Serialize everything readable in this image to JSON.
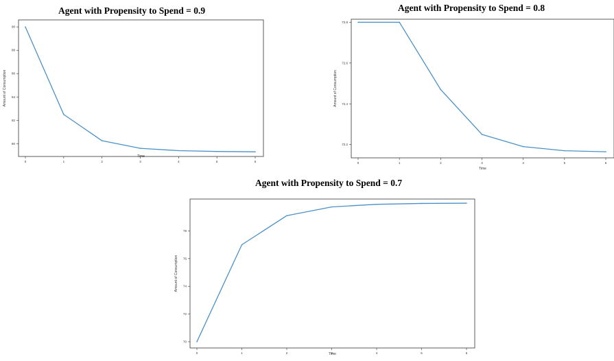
{
  "chart_data": [
    {
      "type": "line",
      "title": "Agent with Propensity to Spend = 0.9",
      "xlabel": "Time",
      "ylabel": "Amount of Consumption",
      "x": [
        0,
        1,
        2,
        3,
        4,
        5,
        6
      ],
      "series": [
        {
          "values": [
            90.0,
            82.5,
            80.25,
            79.6,
            79.4,
            79.33,
            79.3
          ]
        }
      ],
      "xticks": [
        "0",
        "1",
        "2",
        "3",
        "4",
        "5",
        "6"
      ],
      "yticks": [
        "80",
        "82",
        "84",
        "86",
        "88",
        "90"
      ],
      "ylim": [
        78.9,
        90.6
      ],
      "line_color": "#4a90c8",
      "grid": false
    },
    {
      "type": "line",
      "title": "Agent with Propensity to Spend = 0.8",
      "xlabel": "Time",
      "ylabel": "Amount of Consumption",
      "x": [
        0,
        1,
        2,
        3,
        4,
        5,
        6
      ],
      "series": [
        {
          "values": [
            72.8,
            72.8,
            72.47,
            72.25,
            72.19,
            72.17,
            72.165
          ]
        }
      ],
      "xticks": [
        "0",
        "1",
        "2",
        "3",
        "4",
        "5",
        "6"
      ],
      "yticks": [
        "72.2",
        "72.4",
        "72.6",
        "72.8"
      ],
      "ylim": [
        72.135,
        72.815
      ],
      "line_color": "#4a90c8",
      "grid": false
    },
    {
      "type": "line",
      "title": "Agent with Propensity to Spend = 0.7",
      "xlabel": "Time",
      "ylabel": "Amount of Consumption",
      "x": [
        0,
        1,
        2,
        3,
        4,
        5,
        6
      ],
      "series": [
        {
          "values": [
            70.0,
            77.0,
            79.1,
            79.73,
            79.92,
            79.98,
            80.0
          ]
        }
      ],
      "xticks": [
        "0",
        "1",
        "2",
        "3",
        "4",
        "5",
        "6"
      ],
      "yticks": [
        "70",
        "72",
        "74",
        "76",
        "78"
      ],
      "ylim": [
        69.55,
        80.3
      ],
      "line_color": "#4a90c8",
      "grid": false
    }
  ]
}
